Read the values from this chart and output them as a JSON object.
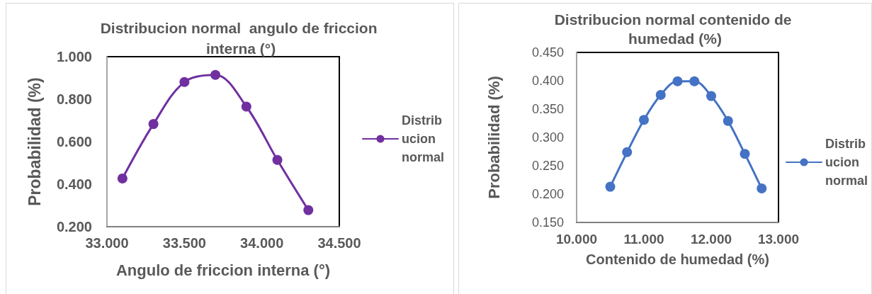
{
  "chart_data": [
    {
      "type": "line",
      "title": "Distribucion normal  angulo de friccion interna (°)",
      "xlabel": "Angulo de friccion interna (°)",
      "ylabel": "Probabilidad (%)",
      "x": [
        33.1,
        33.3,
        33.5,
        33.7,
        33.9,
        34.1,
        34.3
      ],
      "series": [
        {
          "name": "Distribucion normal",
          "color": "#7030a0",
          "values": [
            0.427,
            0.683,
            0.881,
            0.914,
            0.765,
            0.514,
            0.278
          ]
        }
      ],
      "xlim": [
        33,
        34.5
      ],
      "ylim": [
        0.2,
        1
      ],
      "xticks": [
        {
          "value": 33,
          "label": "33.000"
        },
        {
          "value": 33.5,
          "label": "33.500"
        },
        {
          "value": 34,
          "label": "34.000"
        },
        {
          "value": 34.5,
          "label": "34.500"
        }
      ],
      "yticks": [
        {
          "value": 0.2,
          "label": "0.200"
        },
        {
          "value": 0.4,
          "label": "0.400"
        },
        {
          "value": 0.6,
          "label": "0.600"
        },
        {
          "value": 0.8,
          "label": "0.800"
        },
        {
          "value": 1,
          "label": "1.000"
        }
      ],
      "grid": false,
      "legend": "right",
      "marker": "circle",
      "line_style": "solid"
    },
    {
      "type": "line",
      "title": "Distribucion normal contenido de humedad (%)",
      "xlabel": "Contenido de humedad (%)",
      "ylabel": "Probabilidad (%)",
      "x": [
        10.5,
        10.75,
        11,
        11.25,
        11.5,
        11.75,
        12,
        12.25,
        12.5,
        12.75
      ],
      "series": [
        {
          "name": "Distribucion normal",
          "color": "#4472c4",
          "values": [
            0.213,
            0.274,
            0.331,
            0.375,
            0.399,
            0.399,
            0.373,
            0.329,
            0.271,
            0.21
          ]
        }
      ],
      "xlim": [
        10,
        13
      ],
      "ylim": [
        0.15,
        0.45
      ],
      "xticks": [
        {
          "value": 10,
          "label": "10.000"
        },
        {
          "value": 11,
          "label": "11.000"
        },
        {
          "value": 12,
          "label": "12.000"
        },
        {
          "value": 13,
          "label": "13.000"
        }
      ],
      "yticks": [
        {
          "value": 0.15,
          "label": "0.150"
        },
        {
          "value": 0.2,
          "label": "0.200"
        },
        {
          "value": 0.25,
          "label": "0.250"
        },
        {
          "value": 0.3,
          "label": "0.300"
        },
        {
          "value": 0.35,
          "label": "0.350"
        },
        {
          "value": 0.4,
          "label": "0.400"
        },
        {
          "value": 0.45,
          "label": "0.450"
        }
      ],
      "grid": false,
      "legend": "right",
      "marker": "circle",
      "line_style": "solid"
    }
  ]
}
